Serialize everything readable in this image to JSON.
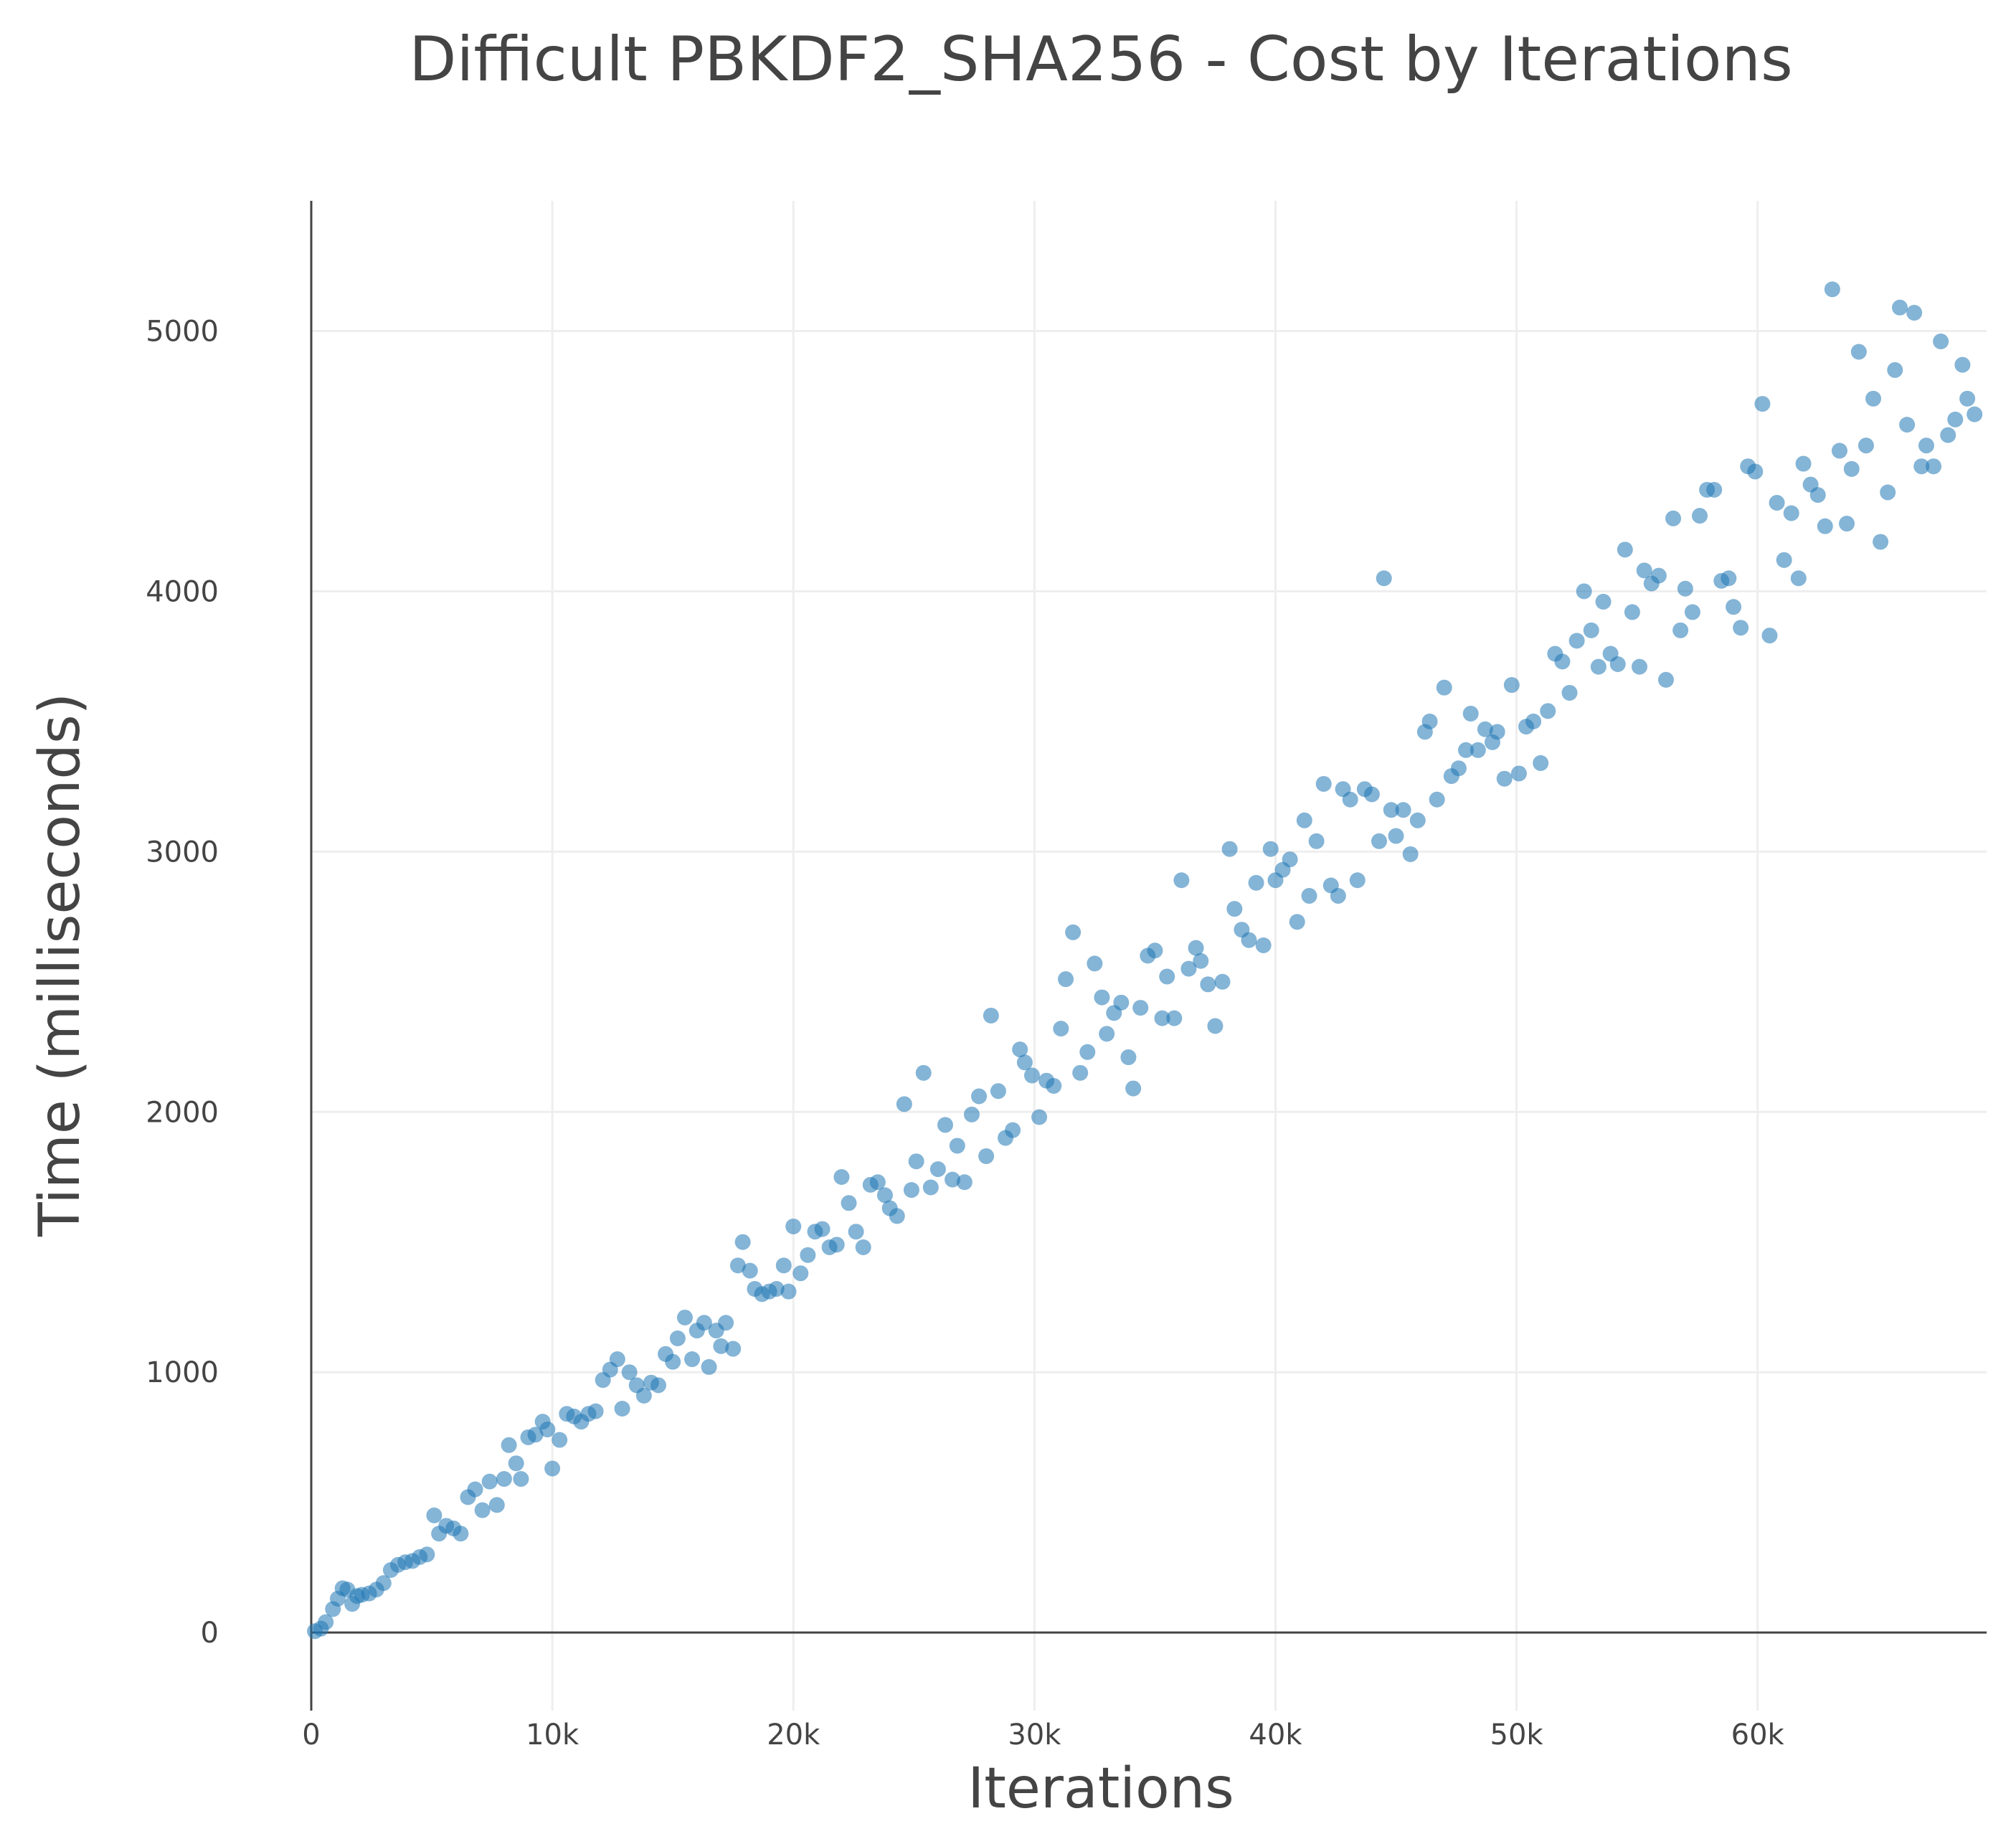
{
  "chart_data": {
    "type": "scatter",
    "title": "Difficult PBKDF2_SHA256 - Cost by Iterations",
    "xlabel": "Iterations",
    "ylabel": "Time (milliseconds)",
    "xlim": [
      0,
      69500
    ],
    "ylim": [
      -300,
      5500
    ],
    "x_ticks": [
      0,
      10000,
      20000,
      30000,
      40000,
      50000,
      60000
    ],
    "x_tick_labels": [
      "0",
      "10k",
      "20k",
      "30k",
      "40k",
      "50k",
      "60k"
    ],
    "y_ticks": [
      0,
      1000,
      2000,
      3000,
      4000,
      5000
    ],
    "y_tick_labels": [
      "0",
      "1000",
      "2000",
      "3000",
      "4000",
      "5000"
    ],
    "grid": true,
    "marker_color": "#1f77b4",
    "series": [
      {
        "points": [
          [
            150,
            5
          ],
          [
            400,
            15
          ],
          [
            600,
            40
          ],
          [
            900,
            90
          ],
          [
            1100,
            130
          ],
          [
            1300,
            170
          ],
          [
            1500,
            165
          ],
          [
            1700,
            110
          ],
          [
            1900,
            140
          ],
          [
            2100,
            145
          ],
          [
            2400,
            150
          ],
          [
            2700,
            165
          ],
          [
            3000,
            190
          ],
          [
            3300,
            240
          ],
          [
            3600,
            260
          ],
          [
            3900,
            270
          ],
          [
            4200,
            275
          ],
          [
            4500,
            290
          ],
          [
            4800,
            300
          ],
          [
            5100,
            450
          ],
          [
            5300,
            380
          ],
          [
            5600,
            410
          ],
          [
            5900,
            400
          ],
          [
            6200,
            380
          ],
          [
            6500,
            520
          ],
          [
            6800,
            550
          ],
          [
            7100,
            470
          ],
          [
            7400,
            580
          ],
          [
            7700,
            490
          ],
          [
            8000,
            590
          ],
          [
            8200,
            720
          ],
          [
            8500,
            650
          ],
          [
            8700,
            590
          ],
          [
            9000,
            750
          ],
          [
            9300,
            760
          ],
          [
            9600,
            810
          ],
          [
            9800,
            780
          ],
          [
            10000,
            630
          ],
          [
            10300,
            740
          ],
          [
            10600,
            840
          ],
          [
            10900,
            830
          ],
          [
            11200,
            810
          ],
          [
            11500,
            840
          ],
          [
            11800,
            850
          ],
          [
            12100,
            970
          ],
          [
            12400,
            1010
          ],
          [
            12700,
            1050
          ],
          [
            12900,
            860
          ],
          [
            13200,
            1000
          ],
          [
            13500,
            950
          ],
          [
            13800,
            910
          ],
          [
            14100,
            960
          ],
          [
            14400,
            950
          ],
          [
            14700,
            1070
          ],
          [
            15000,
            1040
          ],
          [
            15200,
            1130
          ],
          [
            15500,
            1210
          ],
          [
            15800,
            1050
          ],
          [
            16000,
            1160
          ],
          [
            16300,
            1190
          ],
          [
            16500,
            1020
          ],
          [
            16800,
            1160
          ],
          [
            17000,
            1100
          ],
          [
            17200,
            1190
          ],
          [
            17500,
            1090
          ],
          [
            17700,
            1410
          ],
          [
            17900,
            1500
          ],
          [
            18200,
            1390
          ],
          [
            18400,
            1320
          ],
          [
            18700,
            1300
          ],
          [
            19000,
            1310
          ],
          [
            19300,
            1320
          ],
          [
            19600,
            1410
          ],
          [
            19800,
            1310
          ],
          [
            20000,
            1560
          ],
          [
            20300,
            1380
          ],
          [
            20600,
            1450
          ],
          [
            20900,
            1540
          ],
          [
            21200,
            1550
          ],
          [
            21500,
            1480
          ],
          [
            21800,
            1490
          ],
          [
            22000,
            1750
          ],
          [
            22300,
            1650
          ],
          [
            22600,
            1540
          ],
          [
            22900,
            1480
          ],
          [
            23200,
            1720
          ],
          [
            23500,
            1730
          ],
          [
            23800,
            1680
          ],
          [
            24000,
            1630
          ],
          [
            24300,
            1600
          ],
          [
            24600,
            2030
          ],
          [
            24900,
            1700
          ],
          [
            25100,
            1810
          ],
          [
            25400,
            2150
          ],
          [
            25700,
            1710
          ],
          [
            26000,
            1780
          ],
          [
            26300,
            1950
          ],
          [
            26600,
            1740
          ],
          [
            26800,
            1870
          ],
          [
            27100,
            1730
          ],
          [
            27400,
            1990
          ],
          [
            27700,
            2060
          ],
          [
            28000,
            1830
          ],
          [
            28200,
            2370
          ],
          [
            28500,
            2080
          ],
          [
            28800,
            1900
          ],
          [
            29100,
            1930
          ],
          [
            29400,
            2240
          ],
          [
            29600,
            2190
          ],
          [
            29900,
            2140
          ],
          [
            30200,
            1980
          ],
          [
            30500,
            2120
          ],
          [
            30800,
            2100
          ],
          [
            31100,
            2320
          ],
          [
            31300,
            2510
          ],
          [
            31600,
            2690
          ],
          [
            31900,
            2150
          ],
          [
            32200,
            2230
          ],
          [
            32500,
            2570
          ],
          [
            32800,
            2440
          ],
          [
            33000,
            2300
          ],
          [
            33300,
            2380
          ],
          [
            33600,
            2420
          ],
          [
            33900,
            2210
          ],
          [
            34100,
            2090
          ],
          [
            34400,
            2400
          ],
          [
            34700,
            2600
          ],
          [
            35000,
            2620
          ],
          [
            35300,
            2360
          ],
          [
            35500,
            2520
          ],
          [
            35800,
            2360
          ],
          [
            36100,
            2890
          ],
          [
            36400,
            2550
          ],
          [
            36700,
            2630
          ],
          [
            36900,
            2580
          ],
          [
            37200,
            2490
          ],
          [
            37500,
            2330
          ],
          [
            37800,
            2500
          ],
          [
            38100,
            3010
          ],
          [
            38300,
            2780
          ],
          [
            38600,
            2700
          ],
          [
            38900,
            2660
          ],
          [
            39200,
            2880
          ],
          [
            39500,
            2640
          ],
          [
            39800,
            3010
          ],
          [
            40000,
            2890
          ],
          [
            40300,
            2930
          ],
          [
            40600,
            2970
          ],
          [
            40900,
            2730
          ],
          [
            41200,
            3120
          ],
          [
            41400,
            2830
          ],
          [
            41700,
            3040
          ],
          [
            42000,
            3260
          ],
          [
            42300,
            2870
          ],
          [
            42600,
            2830
          ],
          [
            42800,
            3240
          ],
          [
            43100,
            3200
          ],
          [
            43400,
            2890
          ],
          [
            43700,
            3240
          ],
          [
            44000,
            3220
          ],
          [
            44300,
            3040
          ],
          [
            44500,
            4050
          ],
          [
            44800,
            3160
          ],
          [
            45000,
            3060
          ],
          [
            45300,
            3160
          ],
          [
            45600,
            2990
          ],
          [
            45900,
            3120
          ],
          [
            46200,
            3460
          ],
          [
            46400,
            3500
          ],
          [
            46700,
            3200
          ],
          [
            47000,
            3630
          ],
          [
            47300,
            3290
          ],
          [
            47600,
            3320
          ],
          [
            47900,
            3390
          ],
          [
            48100,
            3530
          ],
          [
            48400,
            3390
          ],
          [
            48700,
            3470
          ],
          [
            49000,
            3420
          ],
          [
            49200,
            3460
          ],
          [
            49500,
            3280
          ],
          [
            49800,
            3640
          ],
          [
            50100,
            3300
          ],
          [
            50400,
            3480
          ],
          [
            50700,
            3500
          ],
          [
            51000,
            3340
          ],
          [
            51300,
            3540
          ],
          [
            51600,
            3760
          ],
          [
            51900,
            3730
          ],
          [
            52200,
            3610
          ],
          [
            52500,
            3810
          ],
          [
            52800,
            4000
          ],
          [
            53100,
            3850
          ],
          [
            53400,
            3710
          ],
          [
            53600,
            3960
          ],
          [
            53900,
            3760
          ],
          [
            54200,
            3720
          ],
          [
            54500,
            4160
          ],
          [
            54800,
            3920
          ],
          [
            55100,
            3710
          ],
          [
            55300,
            4080
          ],
          [
            55600,
            4030
          ],
          [
            55900,
            4060
          ],
          [
            56200,
            3660
          ],
          [
            56500,
            4280
          ],
          [
            56800,
            3850
          ],
          [
            57000,
            4010
          ],
          [
            57300,
            3920
          ],
          [
            57600,
            4290
          ],
          [
            57900,
            4390
          ],
          [
            58200,
            4390
          ],
          [
            58500,
            4040
          ],
          [
            58800,
            4050
          ],
          [
            59000,
            3940
          ],
          [
            59300,
            3860
          ],
          [
            59600,
            4480
          ],
          [
            59900,
            4460
          ],
          [
            60200,
            4720
          ],
          [
            60500,
            3830
          ],
          [
            60800,
            4340
          ],
          [
            61100,
            4120
          ],
          [
            61400,
            4300
          ],
          [
            61700,
            4050
          ],
          [
            61900,
            4490
          ],
          [
            62200,
            4410
          ],
          [
            62500,
            4370
          ],
          [
            62800,
            4250
          ],
          [
            63100,
            5160
          ],
          [
            63400,
            4540
          ],
          [
            63700,
            4260
          ],
          [
            63900,
            4470
          ],
          [
            64200,
            4920
          ],
          [
            64500,
            4560
          ],
          [
            64800,
            4740
          ],
          [
            65100,
            4190
          ],
          [
            65400,
            4380
          ],
          [
            65700,
            4850
          ],
          [
            65900,
            5090
          ],
          [
            66200,
            4640
          ],
          [
            66500,
            5070
          ],
          [
            66800,
            4480
          ],
          [
            67000,
            4560
          ],
          [
            67300,
            4480
          ],
          [
            67600,
            4960
          ],
          [
            67900,
            4600
          ],
          [
            68200,
            4660
          ],
          [
            68500,
            4870
          ],
          [
            68700,
            4740
          ],
          [
            69000,
            4680
          ]
        ]
      }
    ]
  }
}
